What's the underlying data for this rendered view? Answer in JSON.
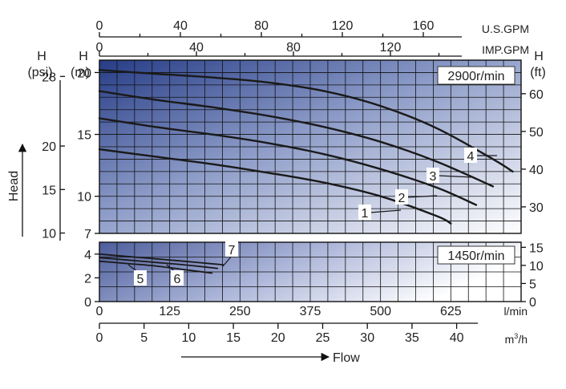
{
  "chart_data": {
    "type": "line",
    "panels": [
      {
        "id": "upper",
        "speed_label": "2900r/min",
        "x_unit": "l/min",
        "xlim": [
          0,
          750
        ],
        "ylim": [
          7,
          21
        ],
        "series": [
          {
            "name": "1",
            "x": [
              0,
              100,
              200,
              300,
              400,
              500,
              600,
              625
            ],
            "y": [
              13.8,
              13.2,
              12.6,
              11.9,
              11.1,
              10.0,
              8.4,
              7.8
            ]
          },
          {
            "name": "2",
            "x": [
              0,
              100,
              200,
              300,
              400,
              500,
              600,
              670
            ],
            "y": [
              16.3,
              15.6,
              15.0,
              14.3,
              13.4,
              12.2,
              10.7,
              9.3
            ]
          },
          {
            "name": "3",
            "x": [
              0,
              100,
              200,
              300,
              400,
              500,
              600,
              700
            ],
            "y": [
              18.5,
              17.8,
              17.2,
              16.5,
              15.6,
              14.4,
              12.8,
              10.8
            ]
          },
          {
            "name": "4",
            "x": [
              0,
              100,
              200,
              300,
              400,
              500,
              600,
              700,
              735
            ],
            "y": [
              20.2,
              19.9,
              19.6,
              19.2,
              18.5,
              17.3,
              15.5,
              13.0,
              12.0
            ]
          }
        ]
      },
      {
        "id": "lower",
        "speed_label": "1450r/min",
        "x_unit": "l/min",
        "xlim": [
          0,
          750
        ],
        "ylim": [
          0,
          5
        ],
        "series": [
          {
            "name": "5",
            "x": [
              0,
              50,
              100,
              150,
              200
            ],
            "y": [
              3.4,
              3.2,
              3.0,
              2.7,
              2.4
            ]
          },
          {
            "name": "6",
            "x": [
              0,
              50,
              100,
              150,
              210
            ],
            "y": [
              3.7,
              3.5,
              3.3,
              3.1,
              2.8
            ]
          },
          {
            "name": "7",
            "x": [
              0,
              50,
              100,
              150,
              220
            ],
            "y": [
              4.0,
              3.8,
              3.6,
              3.4,
              3.1
            ]
          }
        ]
      }
    ],
    "axes": {
      "us_gpm": {
        "label": "U.S.GPM",
        "ticks": [
          "0",
          "40",
          "80",
          "120",
          "160"
        ]
      },
      "imp_gpm": {
        "label": "IMP.GPM",
        "ticks": [
          "0",
          "40",
          "80",
          "120"
        ]
      },
      "lmin": {
        "label": "l/min",
        "ticks": [
          "0",
          "125",
          "250",
          "375",
          "500",
          "625"
        ]
      },
      "m3h": {
        "label_main": "m",
        "label_sup": "3",
        "label_tail": "/h",
        "ticks": [
          "0",
          "5",
          "10",
          "15",
          "20",
          "25",
          "30",
          "35",
          "40"
        ]
      },
      "head_m_upper": {
        "label_top": "H",
        "label_unit": "(m)",
        "ticks": [
          "20",
          "15",
          "10",
          "7"
        ]
      },
      "head_m_lower": {
        "ticks": [
          "4",
          "2",
          "0"
        ]
      },
      "head_psi": {
        "label_top": "H",
        "label_unit": "(psi)",
        "ticks": [
          "28",
          "20",
          "15",
          "10"
        ]
      },
      "head_ft_upper": {
        "label_top": "H",
        "label_unit": "(ft)",
        "ticks": [
          "60",
          "50",
          "40",
          "30"
        ]
      },
      "head_ft_lower": {
        "ticks": [
          "15",
          "10",
          "5",
          "0"
        ]
      }
    },
    "head_label": "Head",
    "flow_label": "Flow",
    "grid": true
  }
}
